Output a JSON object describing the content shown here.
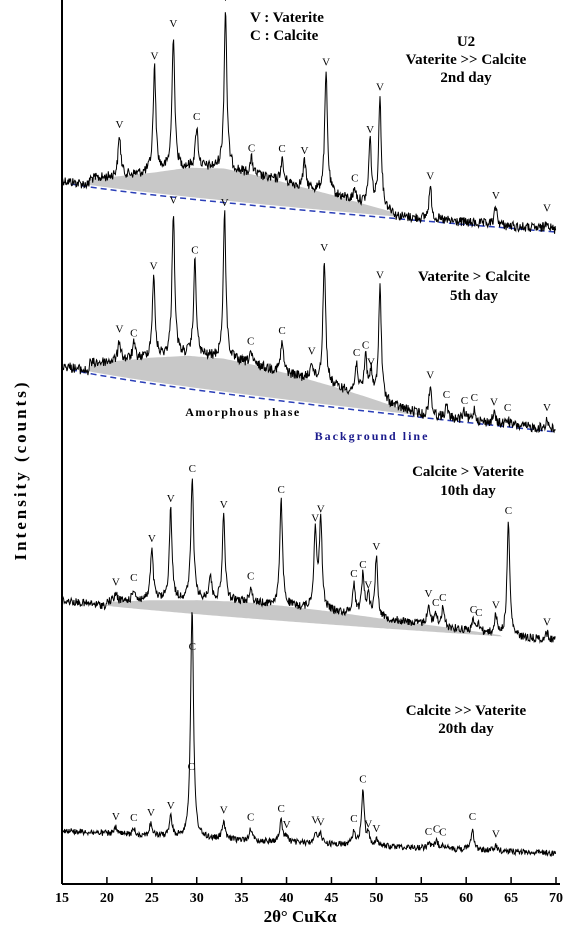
{
  "chart_data": {
    "type": "line",
    "xlabel": "2θ° CuKα",
    "ylabel": "Intensity (counts)",
    "xlim": [
      15,
      70
    ],
    "xticks": [
      15,
      20,
      25,
      30,
      35,
      40,
      45,
      50,
      55,
      60,
      65,
      70
    ],
    "grid": false,
    "legend": {
      "position": "top-center",
      "entries": [
        "V : Vaterite",
        "C : Calcite"
      ]
    },
    "sample_label": "U2",
    "annotations": {
      "amorphous": "Amorphous phase",
      "background": "Background line"
    },
    "series": [
      {
        "name": "2nd day",
        "condition": "Vaterite >> Calcite",
        "noise": 5,
        "base_top": 180,
        "base_bottom": 230,
        "amorphous": [
          [
            18,
            6
          ],
          [
            21,
            12
          ],
          [
            25,
            20
          ],
          [
            29,
            29
          ],
          [
            33,
            32
          ],
          [
            37,
            28
          ],
          [
            41,
            22
          ],
          [
            45,
            16
          ],
          [
            49,
            9
          ],
          [
            52,
            4
          ]
        ],
        "peaks": [
          {
            "x": 21.4,
            "h": 40,
            "label": "V"
          },
          {
            "x": 25.3,
            "h": 105,
            "label": "V"
          },
          {
            "x": 27.4,
            "h": 135,
            "label": "V"
          },
          {
            "x": 30.0,
            "h": 40,
            "label": "C"
          },
          {
            "x": 33.2,
            "h": 160,
            "label": "V"
          },
          {
            "x": 36.1,
            "h": 15,
            "label": "C"
          },
          {
            "x": 39.5,
            "h": 22,
            "label": "C"
          },
          {
            "x": 42.0,
            "h": 26,
            "label": "V"
          },
          {
            "x": 44.4,
            "h": 120,
            "label": "V"
          },
          {
            "x": 47.6,
            "h": 12,
            "label": "C"
          },
          {
            "x": 49.3,
            "h": 65,
            "label": "V"
          },
          {
            "x": 50.4,
            "h": 110,
            "label": "V"
          },
          {
            "x": 56.0,
            "h": 32,
            "label": "V"
          },
          {
            "x": 63.3,
            "h": 18,
            "label": "V"
          },
          {
            "x": 69.0,
            "h": 10,
            "label": "V"
          }
        ]
      },
      {
        "name": "5th day",
        "condition": "Vaterite > Calcite",
        "noise": 5,
        "base_top": 365,
        "base_bottom": 430,
        "amorphous": [
          [
            18,
            8
          ],
          [
            21,
            15
          ],
          [
            25,
            24
          ],
          [
            29,
            31
          ],
          [
            33,
            33
          ],
          [
            37,
            30
          ],
          [
            41,
            25
          ],
          [
            45,
            19
          ],
          [
            49,
            12
          ],
          [
            52,
            6
          ],
          [
            55,
            1
          ]
        ],
        "peaks": [
          {
            "x": 21.4,
            "h": 20,
            "label": "V"
          },
          {
            "x": 23.0,
            "h": 15,
            "label": "C"
          },
          {
            "x": 25.2,
            "h": 80,
            "label": "V"
          },
          {
            "x": 27.4,
            "h": 145,
            "label": "V"
          },
          {
            "x": 29.8,
            "h": 95,
            "label": "C"
          },
          {
            "x": 33.1,
            "h": 145,
            "label": "V"
          },
          {
            "x": 36.0,
            "h": 12,
            "label": "C"
          },
          {
            "x": 39.5,
            "h": 30,
            "label": "C"
          },
          {
            "x": 42.8,
            "h": 18,
            "label": "V"
          },
          {
            "x": 44.2,
            "h": 125,
            "label": "V"
          },
          {
            "x": 47.8,
            "h": 30,
            "label": "C"
          },
          {
            "x": 48.8,
            "h": 40,
            "label": "C"
          },
          {
            "x": 49.4,
            "h": 25,
            "label": "V"
          },
          {
            "x": 50.4,
            "h": 115,
            "label": "V"
          },
          {
            "x": 56.0,
            "h": 30,
            "label": "V"
          },
          {
            "x": 57.8,
            "h": 12,
            "label": "C"
          },
          {
            "x": 59.8,
            "h": 8,
            "label": "C"
          },
          {
            "x": 60.9,
            "h": 12,
            "label": "C"
          },
          {
            "x": 63.1,
            "h": 10,
            "label": "V"
          },
          {
            "x": 64.6,
            "h": 6,
            "label": "C"
          },
          {
            "x": 69.0,
            "h": 10,
            "label": "V"
          }
        ]
      },
      {
        "name": "10th day",
        "condition": "Calcite > Vaterite",
        "noise": 4,
        "base_top": 600,
        "base_bottom": 640,
        "amorphous": [
          [
            20,
            4
          ],
          [
            25,
            10
          ],
          [
            30,
            14
          ],
          [
            35,
            16
          ],
          [
            40,
            15
          ],
          [
            45,
            13
          ],
          [
            50,
            10
          ],
          [
            55,
            7
          ],
          [
            60,
            4
          ],
          [
            64,
            1
          ]
        ],
        "peaks": [
          {
            "x": 21.0,
            "h": 8,
            "label": "V"
          },
          {
            "x": 23.0,
            "h": 12,
            "label": "C"
          },
          {
            "x": 25.0,
            "h": 50,
            "label": "V"
          },
          {
            "x": 27.1,
            "h": 90,
            "label": "V"
          },
          {
            "x": 29.5,
            "h": 120,
            "label": "C"
          },
          {
            "x": 31.5,
            "h": 25,
            "label": ""
          },
          {
            "x": 33.0,
            "h": 85,
            "label": "V"
          },
          {
            "x": 36.0,
            "h": 15,
            "label": "C"
          },
          {
            "x": 39.4,
            "h": 105,
            "label": "C"
          },
          {
            "x": 43.2,
            "h": 80,
            "label": "V"
          },
          {
            "x": 43.8,
            "h": 90,
            "label": "V"
          },
          {
            "x": 47.5,
            "h": 30,
            "label": "C"
          },
          {
            "x": 48.5,
            "h": 40,
            "label": "C"
          },
          {
            "x": 49.1,
            "h": 20,
            "label": "V"
          },
          {
            "x": 50.0,
            "h": 60,
            "label": "V"
          },
          {
            "x": 55.8,
            "h": 20,
            "label": "V"
          },
          {
            "x": 56.6,
            "h": 12,
            "label": "C"
          },
          {
            "x": 57.4,
            "h": 18,
            "label": "C"
          },
          {
            "x": 60.8,
            "h": 10,
            "label": "C"
          },
          {
            "x": 61.4,
            "h": 8,
            "label": "C"
          },
          {
            "x": 63.3,
            "h": 18,
            "label": "V"
          },
          {
            "x": 64.7,
            "h": 115,
            "label": "C"
          },
          {
            "x": 69.0,
            "h": 6,
            "label": "V"
          }
        ]
      },
      {
        "name": "20th day",
        "condition": "Calcite >> Vaterite",
        "noise": 3,
        "base_top": 830,
        "base_bottom": 853,
        "amorphous": [],
        "peaks": [
          {
            "x": 21.0,
            "h": 6,
            "label": "V"
          },
          {
            "x": 23.0,
            "h": 6,
            "label": "C"
          },
          {
            "x": 24.9,
            "h": 12,
            "label": "V"
          },
          {
            "x": 27.1,
            "h": 20,
            "label": "V"
          },
          {
            "x": 29.4,
            "h": 60,
            "label": "C"
          },
          {
            "x": 29.5,
            "h": 180,
            "label": "C"
          },
          {
            "x": 33.0,
            "h": 18,
            "label": "V"
          },
          {
            "x": 36.0,
            "h": 12,
            "label": "C"
          },
          {
            "x": 39.4,
            "h": 22,
            "label": "C"
          },
          {
            "x": 40.0,
            "h": 6,
            "label": "V"
          },
          {
            "x": 43.2,
            "h": 12,
            "label": "V"
          },
          {
            "x": 43.8,
            "h": 10,
            "label": "V"
          },
          {
            "x": 47.5,
            "h": 15,
            "label": "C"
          },
          {
            "x": 48.5,
            "h": 55,
            "label": "C"
          },
          {
            "x": 49.1,
            "h": 10,
            "label": "V"
          },
          {
            "x": 50.0,
            "h": 6,
            "label": "V"
          },
          {
            "x": 55.8,
            "h": 5,
            "label": "C"
          },
          {
            "x": 56.7,
            "h": 8,
            "label": "C"
          },
          {
            "x": 57.4,
            "h": 5,
            "label": "C"
          },
          {
            "x": 60.7,
            "h": 22,
            "label": "C"
          },
          {
            "x": 63.3,
            "h": 5,
            "label": "V"
          }
        ]
      }
    ]
  }
}
